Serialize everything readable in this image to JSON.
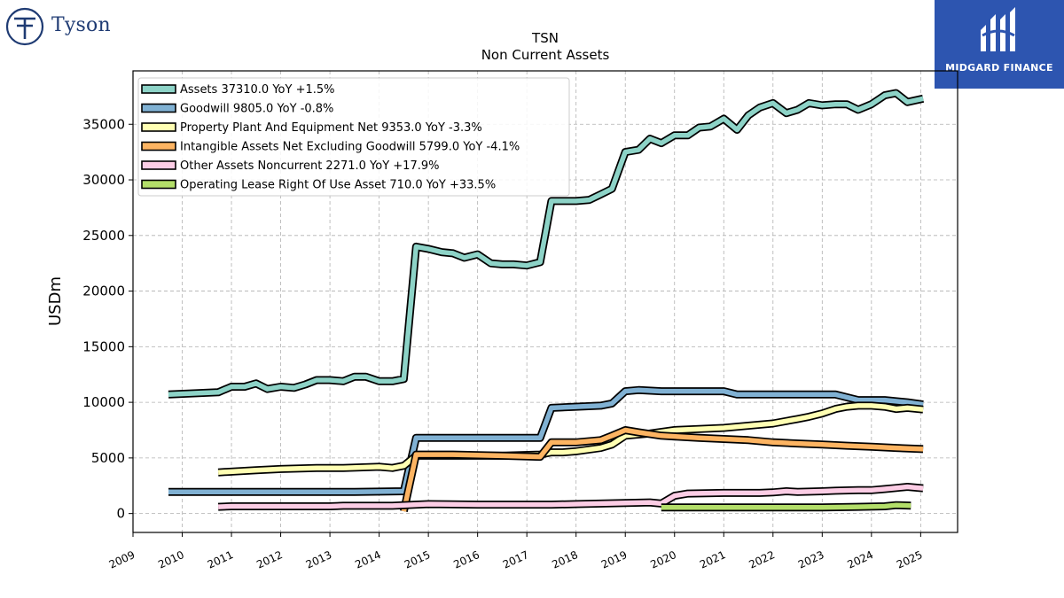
{
  "brand": {
    "left_logo_text": "Tyson",
    "right_logo_text": "MIDGARD FINANCE",
    "right_logo_color": "#2d55b0",
    "left_logo_color": "#1f3b73"
  },
  "chart_data": {
    "type": "line",
    "title": "TSN",
    "subtitle": "Non Current  Assets",
    "ylabel": "USDm",
    "xlabel": "",
    "xlim": [
      2009.0,
      2025.75
    ],
    "ylim": [
      -1700,
      39800
    ],
    "grid": true,
    "legend_position": "top-left",
    "xticks": [
      "2009",
      "2010",
      "2011",
      "2012",
      "2013",
      "2014",
      "2015",
      "2016",
      "2017",
      "2018",
      "2019",
      "2020",
      "2021",
      "2022",
      "2023",
      "2024",
      "2025"
    ],
    "yticks": [
      "0",
      "5000",
      "10000",
      "15000",
      "20000",
      "25000",
      "30000",
      "35000"
    ],
    "series": [
      {
        "name": "Assets  37310.0 YoY +1.5%",
        "color": "#8dd3c7",
        "points": [
          [
            2009.72,
            10700
          ],
          [
            2010.73,
            10900
          ],
          [
            2011.0,
            11400
          ],
          [
            2011.27,
            11400
          ],
          [
            2011.5,
            11700
          ],
          [
            2011.73,
            11200
          ],
          [
            2012.0,
            11400
          ],
          [
            2012.27,
            11300
          ],
          [
            2012.5,
            11600
          ],
          [
            2012.73,
            12000
          ],
          [
            2013.0,
            12000
          ],
          [
            2013.27,
            11900
          ],
          [
            2013.5,
            12300
          ],
          [
            2013.73,
            12300
          ],
          [
            2014.0,
            11900
          ],
          [
            2014.27,
            11900
          ],
          [
            2014.5,
            12100
          ],
          [
            2014.75,
            24000
          ],
          [
            2015.0,
            23800
          ],
          [
            2015.27,
            23500
          ],
          [
            2015.5,
            23400
          ],
          [
            2015.73,
            23000
          ],
          [
            2016.0,
            23300
          ],
          [
            2016.27,
            22500
          ],
          [
            2016.5,
            22400
          ],
          [
            2016.73,
            22400
          ],
          [
            2017.0,
            22300
          ],
          [
            2017.27,
            22600
          ],
          [
            2017.5,
            28100
          ],
          [
            2017.73,
            28100
          ],
          [
            2018.0,
            28100
          ],
          [
            2018.27,
            28200
          ],
          [
            2018.5,
            28700
          ],
          [
            2018.73,
            29200
          ],
          [
            2019.0,
            32500
          ],
          [
            2019.27,
            32700
          ],
          [
            2019.5,
            33700
          ],
          [
            2019.73,
            33300
          ],
          [
            2020.0,
            34000
          ],
          [
            2020.27,
            34000
          ],
          [
            2020.5,
            34700
          ],
          [
            2020.73,
            34800
          ],
          [
            2021.0,
            35500
          ],
          [
            2021.27,
            34500
          ],
          [
            2021.5,
            35800
          ],
          [
            2021.73,
            36500
          ],
          [
            2022.0,
            36900
          ],
          [
            2022.27,
            36000
          ],
          [
            2022.5,
            36300
          ],
          [
            2022.73,
            36900
          ],
          [
            2023.0,
            36700
          ],
          [
            2023.27,
            36800
          ],
          [
            2023.5,
            36800
          ],
          [
            2023.73,
            36300
          ],
          [
            2024.0,
            36800
          ],
          [
            2024.27,
            37600
          ],
          [
            2024.5,
            37800
          ],
          [
            2024.73,
            37000
          ],
          [
            2025.05,
            37310
          ]
        ]
      },
      {
        "name": "Goodwill  9805.0 YoY -0.8%",
        "color": "#80b1d3",
        "points": [
          [
            2009.72,
            1950
          ],
          [
            2010.73,
            1950
          ],
          [
            2011.5,
            1950
          ],
          [
            2012.5,
            1950
          ],
          [
            2013.5,
            1950
          ],
          [
            2014.5,
            2000
          ],
          [
            2014.75,
            6800
          ],
          [
            2015.5,
            6800
          ],
          [
            2016.5,
            6800
          ],
          [
            2017.27,
            6800
          ],
          [
            2017.5,
            9500
          ],
          [
            2018.0,
            9600
          ],
          [
            2018.5,
            9700
          ],
          [
            2018.73,
            9900
          ],
          [
            2019.0,
            11000
          ],
          [
            2019.27,
            11100
          ],
          [
            2019.73,
            11000
          ],
          [
            2020.27,
            11000
          ],
          [
            2020.73,
            11000
          ],
          [
            2021.0,
            11000
          ],
          [
            2021.27,
            10700
          ],
          [
            2021.73,
            10700
          ],
          [
            2022.5,
            10700
          ],
          [
            2023.0,
            10700
          ],
          [
            2023.27,
            10700
          ],
          [
            2023.73,
            10200
          ],
          [
            2024.27,
            10200
          ],
          [
            2024.73,
            10000
          ],
          [
            2025.05,
            9805
          ]
        ]
      },
      {
        "name": "Property Plant And Equipment Net  9353.0 YoY -3.3%",
        "color": "#ffffb3",
        "points": [
          [
            2010.73,
            3700
          ],
          [
            2011.5,
            3900
          ],
          [
            2012.0,
            4000
          ],
          [
            2012.73,
            4100
          ],
          [
            2013.27,
            4100
          ],
          [
            2014.0,
            4200
          ],
          [
            2014.27,
            4100
          ],
          [
            2014.5,
            4300
          ],
          [
            2014.75,
            5200
          ],
          [
            2015.5,
            5200
          ],
          [
            2016.5,
            5200
          ],
          [
            2017.27,
            5300
          ],
          [
            2017.5,
            5500
          ],
          [
            2017.73,
            5500
          ],
          [
            2018.0,
            5600
          ],
          [
            2018.5,
            5900
          ],
          [
            2018.73,
            6200
          ],
          [
            2019.0,
            7000
          ],
          [
            2019.5,
            7200
          ],
          [
            2020.0,
            7500
          ],
          [
            2020.5,
            7600
          ],
          [
            2021.0,
            7700
          ],
          [
            2021.5,
            7900
          ],
          [
            2022.0,
            8100
          ],
          [
            2022.5,
            8500
          ],
          [
            2022.73,
            8700
          ],
          [
            2023.0,
            9000
          ],
          [
            2023.27,
            9400
          ],
          [
            2023.5,
            9600
          ],
          [
            2023.73,
            9700
          ],
          [
            2024.0,
            9700
          ],
          [
            2024.27,
            9600
          ],
          [
            2024.5,
            9400
          ],
          [
            2024.73,
            9500
          ],
          [
            2025.05,
            9353
          ]
        ]
      },
      {
        "name": "Intangible Assets Net Excluding Goodwill  5799.0 YoY -4.1%",
        "color": "#fdb462",
        "points": [
          [
            2014.5,
            200
          ],
          [
            2014.75,
            5300
          ],
          [
            2015.5,
            5300
          ],
          [
            2016.5,
            5200
          ],
          [
            2017.27,
            5100
          ],
          [
            2017.5,
            6400
          ],
          [
            2018.0,
            6400
          ],
          [
            2018.5,
            6600
          ],
          [
            2018.73,
            7000
          ],
          [
            2019.0,
            7500
          ],
          [
            2019.27,
            7300
          ],
          [
            2019.73,
            7000
          ],
          [
            2020.5,
            6800
          ],
          [
            2021.0,
            6700
          ],
          [
            2021.5,
            6600
          ],
          [
            2022.0,
            6400
          ],
          [
            2022.5,
            6300
          ],
          [
            2023.0,
            6200
          ],
          [
            2023.5,
            6100
          ],
          [
            2024.0,
            6000
          ],
          [
            2024.5,
            5900
          ],
          [
            2025.05,
            5799
          ]
        ]
      },
      {
        "name": "Other Assets Noncurrent  2271.0 YoY +17.9%",
        "color": "#fccde5",
        "points": [
          [
            2010.73,
            600
          ],
          [
            2011.0,
            650
          ],
          [
            2012.0,
            650
          ],
          [
            2013.0,
            650
          ],
          [
            2013.27,
            700
          ],
          [
            2014.27,
            700
          ],
          [
            2014.75,
            800
          ],
          [
            2015.0,
            850
          ],
          [
            2016.0,
            800
          ],
          [
            2017.0,
            800
          ],
          [
            2017.5,
            800
          ],
          [
            2018.0,
            850
          ],
          [
            2018.5,
            900
          ],
          [
            2019.0,
            950
          ],
          [
            2019.5,
            1000
          ],
          [
            2019.73,
            900
          ],
          [
            2020.0,
            1600
          ],
          [
            2020.27,
            1800
          ],
          [
            2021.0,
            1850
          ],
          [
            2021.5,
            1850
          ],
          [
            2021.73,
            1850
          ],
          [
            2022.0,
            1900
          ],
          [
            2022.27,
            2000
          ],
          [
            2022.5,
            1950
          ],
          [
            2023.0,
            2000
          ],
          [
            2023.27,
            2050
          ],
          [
            2023.73,
            2100
          ],
          [
            2024.0,
            2100
          ],
          [
            2024.27,
            2200
          ],
          [
            2024.5,
            2300
          ],
          [
            2024.73,
            2400
          ],
          [
            2025.05,
            2271
          ]
        ]
      },
      {
        "name": "Operating Lease Right Of Use Asset  710.0 YoY +33.5%",
        "color": "#b3de69",
        "points": [
          [
            2019.73,
            550
          ],
          [
            2020.5,
            550
          ],
          [
            2021.5,
            550
          ],
          [
            2022.5,
            550
          ],
          [
            2023.0,
            550
          ],
          [
            2023.73,
            600
          ],
          [
            2024.27,
            650
          ],
          [
            2024.5,
            750
          ],
          [
            2024.8,
            710
          ]
        ]
      }
    ]
  }
}
